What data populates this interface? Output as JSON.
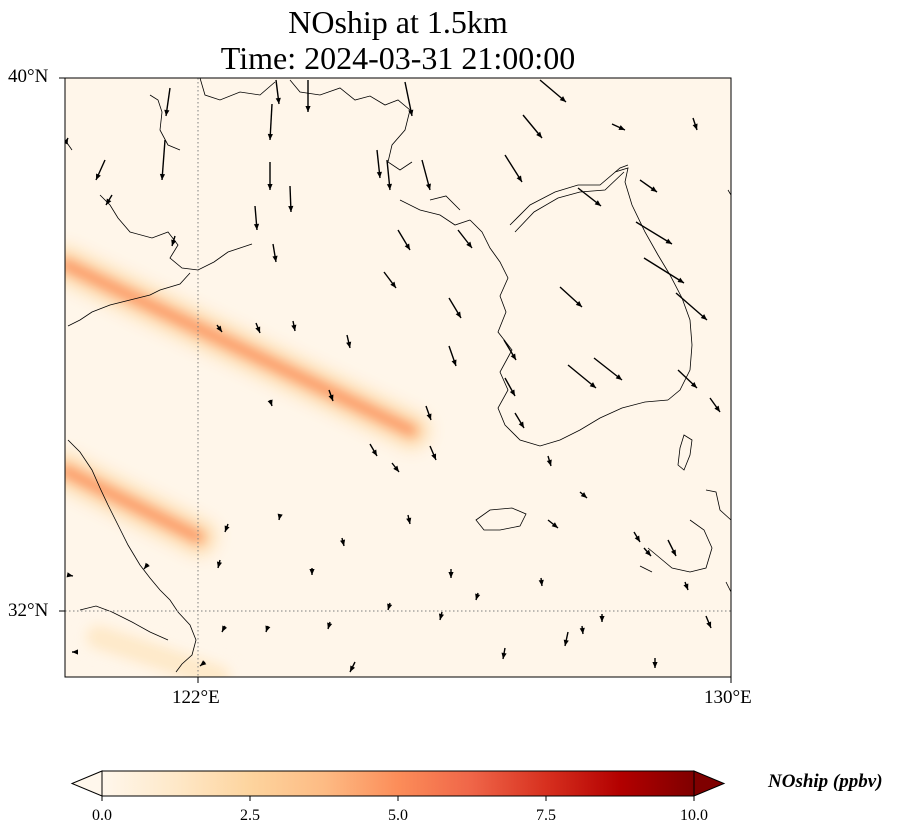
{
  "title": {
    "line1": "NOship at 1.5km",
    "line2": "Time: 2024-03-31 21:00:00"
  },
  "axes": {
    "lat_ticks": [
      "40°N",
      "32°N"
    ],
    "lon_ticks": [
      "122°E",
      "130°E"
    ],
    "lon_range": [
      120,
      130
    ],
    "lat_range": [
      31,
      40
    ],
    "gridlines": "dotted, at 122°E and 32°N"
  },
  "colorbar": {
    "label": "NOship (ppbv)",
    "ticks": [
      "0.0",
      "2.5",
      "5.0",
      "7.5",
      "10.0"
    ],
    "range": [
      0,
      10
    ],
    "extend": "both",
    "colormap": "OrRd",
    "colors": [
      "#fff7ec",
      "#fee8c8",
      "#fdd49e",
      "#fdbb84",
      "#fc8d59",
      "#ef6548",
      "#d7301f",
      "#b30000",
      "#7f0000"
    ]
  },
  "chart_data": {
    "type": "heatmap",
    "variable": "NOship",
    "level": "1.5km",
    "time": "2024-03-31 21:00:00",
    "units": "ppbv",
    "plumes": [
      {
        "from": [
          120.0,
          37.2
        ],
        "to": [
          125.2,
          34.7
        ],
        "peak": 4.5
      },
      {
        "from": [
          120.0,
          34.1
        ],
        "to": [
          122.0,
          33.1
        ],
        "peak": 4.8
      },
      {
        "from": [
          120.5,
          31.6
        ],
        "to": [
          122.3,
          31.0
        ],
        "peak": 1.2
      }
    ],
    "background_ppbv": 0.3,
    "wind_vectors": "black quiver arrows, mostly from north-west to south-east"
  }
}
